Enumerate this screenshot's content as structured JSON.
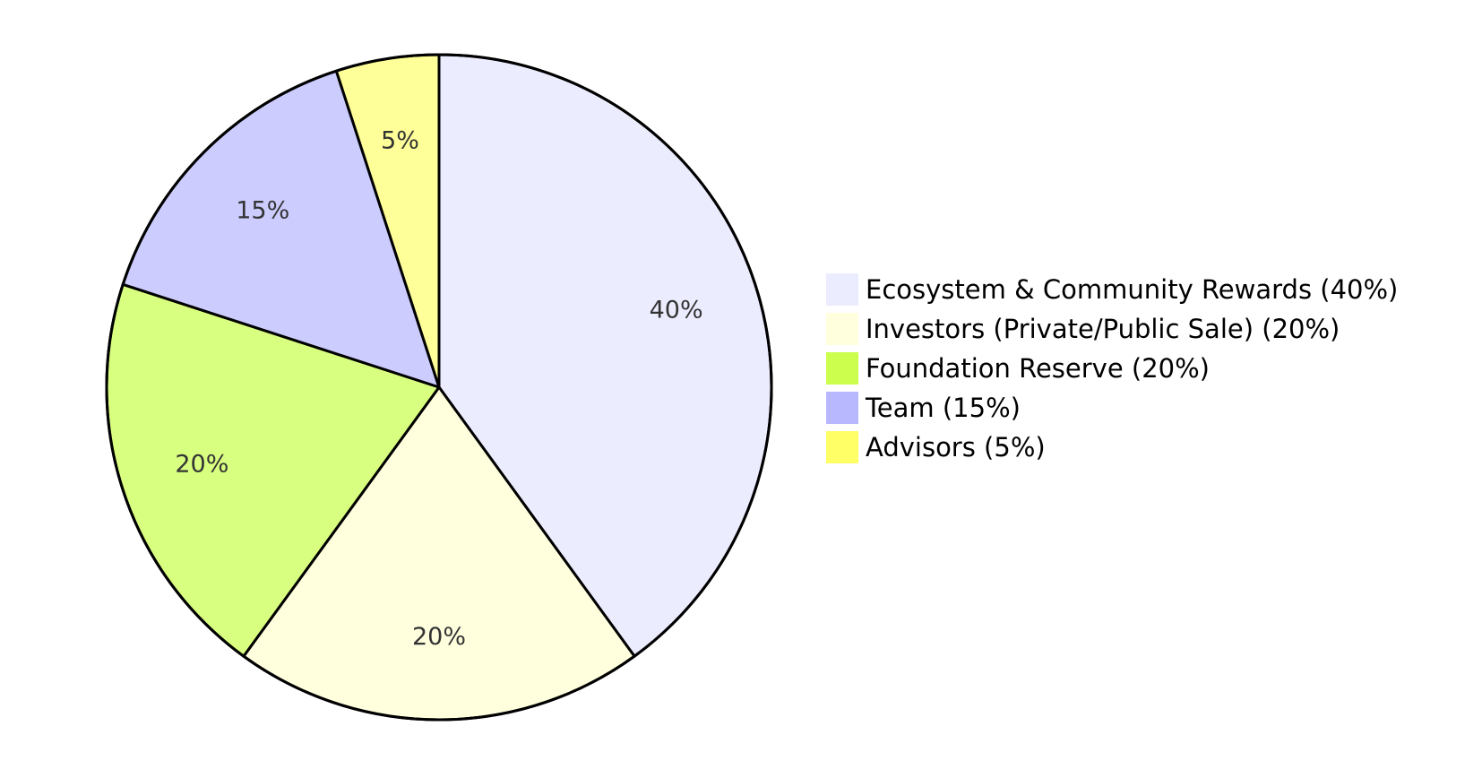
{
  "chart_data": {
    "type": "pie",
    "title": "",
    "slices": [
      {
        "label": "Ecosystem & Community Rewards (40%)",
        "value": 40,
        "text": "40%",
        "color": "#ececff"
      },
      {
        "label": "Investors (Private/Public Sale) (20%)",
        "value": 20,
        "text": "20%",
        "color": "#ffffde"
      },
      {
        "label": "Foundation Reserve (20%)",
        "value": 20,
        "text": "20%",
        "color": "#d9ff80"
      },
      {
        "label": "Team (15%)",
        "value": 15,
        "text": "15%",
        "color": "#ccccff"
      },
      {
        "label": "Advisors (5%)",
        "value": 5,
        "text": "5%",
        "color": "#ffff99"
      }
    ],
    "legend_colors": [
      "#ececff",
      "#ffffde",
      "#ccff4d",
      "#b8b8ff",
      "#ffff66"
    ],
    "legend_position": "right",
    "start": "top",
    "direction": "clockwise"
  }
}
